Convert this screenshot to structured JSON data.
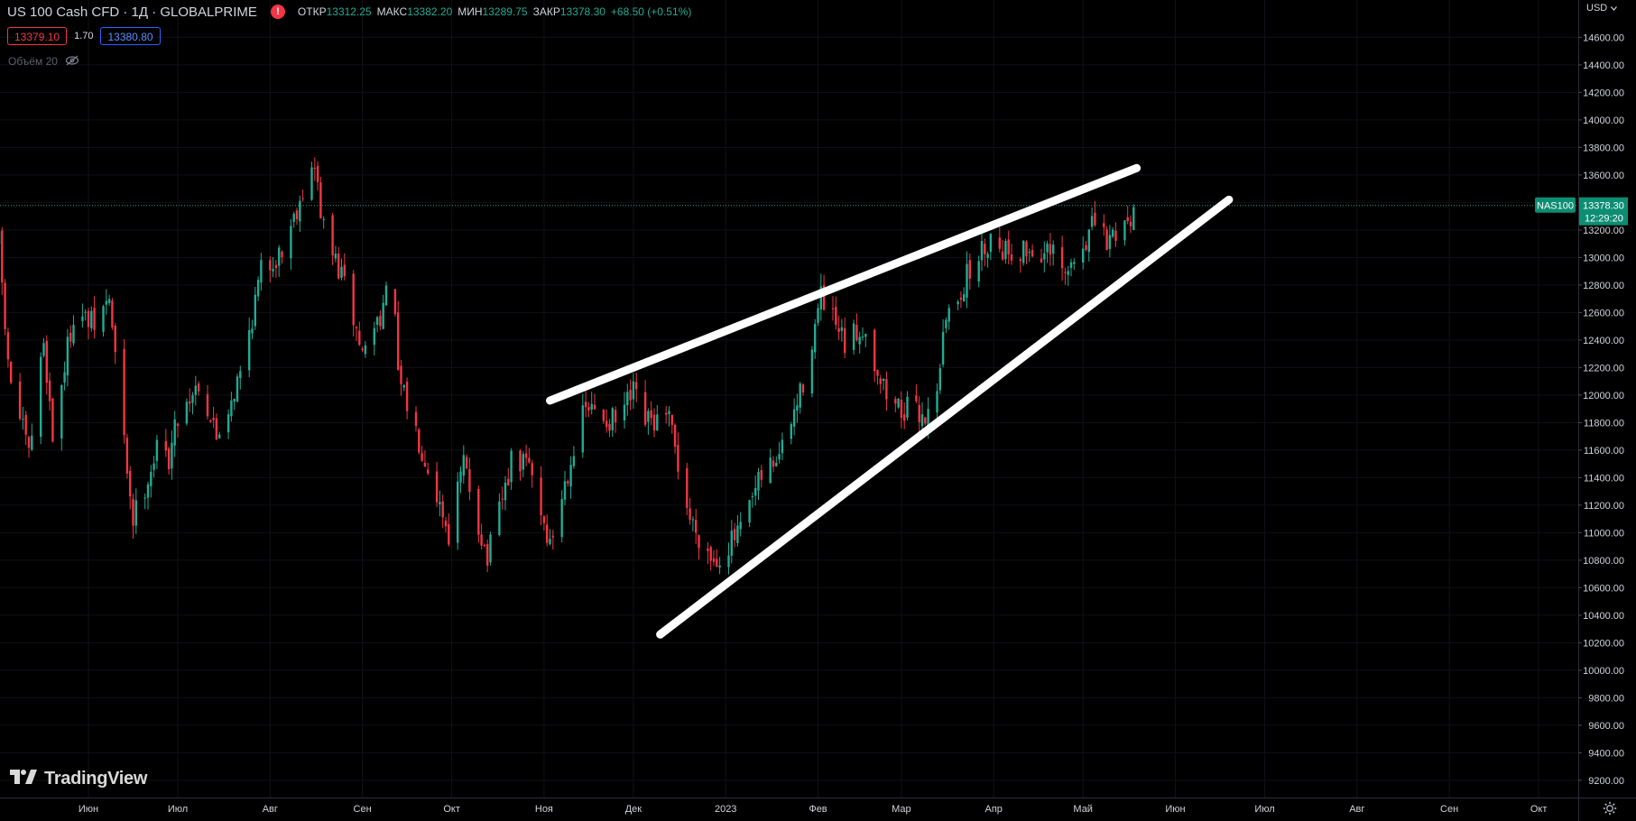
{
  "header": {
    "symbol_title": "US 100 Cash CFD · 1Д · GLOBALPRIME",
    "open_label": "ОТКР",
    "open_value": "13312.25",
    "high_label": "МАКС",
    "high_value": "13382.20",
    "low_label": "МИН",
    "low_value": "13289.75",
    "close_label": "ЗАКР",
    "close_value": "13378.30",
    "change": "+68.50 (+0.51%)",
    "sell_price": "13379.10",
    "spread": "1.70",
    "buy_price": "13380.80",
    "volume_label": "Объём 20"
  },
  "price_axis": {
    "currency": "USD",
    "symbol_tag": "NAS100",
    "last_price": "13378.30",
    "countdown": "12:29:20"
  },
  "logo": {
    "text": "TradingView"
  },
  "colors": {
    "up": "#22ab94",
    "down": "#f23645",
    "background": "#000000",
    "trendline": "#ffffff"
  },
  "chart_data": {
    "type": "candlestick",
    "y_ticks": [
      9200,
      9400,
      9600,
      9800,
      10000,
      10200,
      10400,
      10600,
      10800,
      11000,
      11200,
      11400,
      11600,
      11800,
      12000,
      12200,
      12400,
      12600,
      12800,
      13000,
      13200,
      13400,
      13600,
      13800,
      14000,
      14200,
      14400,
      14600
    ],
    "y_tick_labels": [
      "9200.00",
      "9400.00",
      "9600.00",
      "9800.00",
      "10000.00",
      "10200.00",
      "10400.00",
      "10600.00",
      "10800.00",
      "11000.00",
      "11200.00",
      "11400.00",
      "11600.00",
      "11800.00",
      "12000.00",
      "12200.00",
      "12400.00",
      "12600.00",
      "12800.00",
      "13000.00",
      "13200.00",
      "13400.00",
      "13600.00",
      "13800.00",
      "14000.00",
      "14200.00",
      "14400.00",
      "14600.00"
    ],
    "x_ticks": [
      "2022-06-01",
      "2022-07-01",
      "2022-08-01",
      "2022-09-01",
      "2022-10-01",
      "2022-11-01",
      "2022-12-01",
      "2023-01-01",
      "2023-02-01",
      "2023-03-01",
      "2023-04-01",
      "2023-05-01",
      "2023-06-01",
      "2023-07-01",
      "2023-08-01",
      "2023-09-01",
      "2023-10-01"
    ],
    "x_tick_labels": [
      "Июн",
      "Июл",
      "Авг",
      "Сен",
      "Окт",
      "Ноя",
      "Дек",
      "2023",
      "Фев",
      "Мар",
      "Апр",
      "Май",
      "Июн",
      "Июл",
      "Авг",
      "Сен",
      "Окт"
    ],
    "last_price": 13378.3,
    "price_path": [
      [
        "2022-05-02",
        13100
      ],
      [
        "2022-05-05",
        12200
      ],
      [
        "2022-05-12",
        11550
      ],
      [
        "2022-05-17",
        12400
      ],
      [
        "2022-05-20",
        11700
      ],
      [
        "2022-05-27",
        12600
      ],
      [
        "2022-06-03",
        12500
      ],
      [
        "2022-06-08",
        12700
      ],
      [
        "2022-06-13",
        11650
      ],
      [
        "2022-06-16",
        11100
      ],
      [
        "2022-06-24",
        11600
      ],
      [
        "2022-06-28",
        11550
      ],
      [
        "2022-07-01",
        11850
      ],
      [
        "2022-07-08",
        12100
      ],
      [
        "2022-07-14",
        11700
      ],
      [
        "2022-07-22",
        12150
      ],
      [
        "2022-07-29",
        12900
      ],
      [
        "2022-08-05",
        13050
      ],
      [
        "2022-08-12",
        13500
      ],
      [
        "2022-08-16",
        13650
      ],
      [
        "2022-08-19",
        13200
      ],
      [
        "2022-08-26",
        12800
      ],
      [
        "2022-09-01",
        12300
      ],
      [
        "2022-09-09",
        12700
      ],
      [
        "2022-09-12",
        12650
      ],
      [
        "2022-09-13",
        12100
      ],
      [
        "2022-09-23",
        11500
      ],
      [
        "2022-09-30",
        11000
      ],
      [
        "2022-10-05",
        11500
      ],
      [
        "2022-10-13",
        10800
      ],
      [
        "2022-10-21",
        11500
      ],
      [
        "2022-10-27",
        11500
      ],
      [
        "2022-11-03",
        10900
      ],
      [
        "2022-11-10",
        11550
      ],
      [
        "2022-11-15",
        11900
      ],
      [
        "2022-11-25",
        11800
      ],
      [
        "2022-12-01",
        12000
      ],
      [
        "2022-12-05",
        11800
      ],
      [
        "2022-12-13",
        11800
      ],
      [
        "2022-12-20",
        11100
      ],
      [
        "2022-12-28",
        10800
      ],
      [
        "2023-01-06",
        11000
      ],
      [
        "2023-01-13",
        11400
      ],
      [
        "2023-01-20",
        11600
      ],
      [
        "2023-01-26",
        12000
      ],
      [
        "2023-02-02",
        12700
      ],
      [
        "2023-02-10",
        12350
      ],
      [
        "2023-02-16",
        12500
      ],
      [
        "2023-02-24",
        12000
      ],
      [
        "2023-03-01",
        11900
      ],
      [
        "2023-03-10",
        11850
      ],
      [
        "2023-03-13",
        12100
      ],
      [
        "2023-03-16",
        12550
      ],
      [
        "2023-03-24",
        12900
      ],
      [
        "2023-03-31",
        13150
      ],
      [
        "2023-04-06",
        13050
      ],
      [
        "2023-04-14",
        13050
      ],
      [
        "2023-04-21",
        13000
      ],
      [
        "2023-04-25",
        12850
      ],
      [
        "2023-05-01",
        13100
      ],
      [
        "2023-05-05",
        13250
      ],
      [
        "2023-05-09",
        13100
      ],
      [
        "2023-05-12",
        13200
      ],
      [
        "2023-05-16",
        13280
      ],
      [
        "2023-05-18",
        13340
      ]
    ],
    "trendlines": [
      {
        "name": "upper",
        "start": [
          "2022-11-03",
          11960
        ],
        "end": [
          "2023-05-19",
          13650
        ]
      },
      {
        "name": "lower",
        "start": [
          "2022-12-10",
          10260
        ],
        "end": [
          "2023-06-19",
          13420
        ]
      }
    ]
  }
}
